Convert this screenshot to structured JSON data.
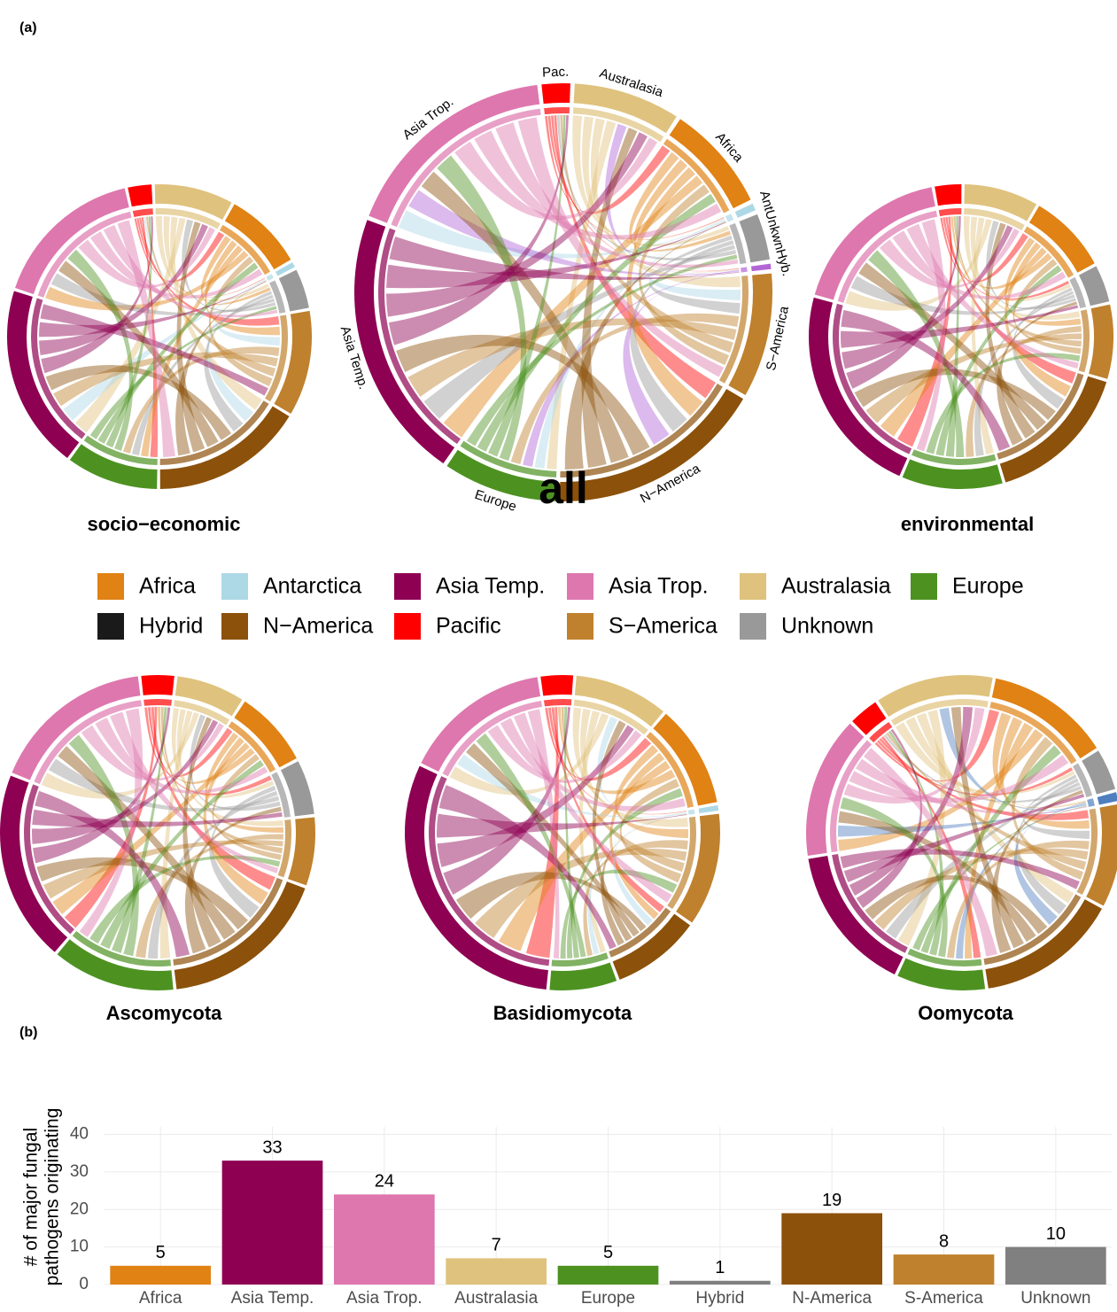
{
  "panel_labels": [
    "(a)",
    "(b)"
  ],
  "legend": {
    "items": [
      {
        "name": "Africa",
        "color": "#E08214"
      },
      {
        "name": "Antarctica",
        "color": "#ADD8E6"
      },
      {
        "name": "Asia Temp.",
        "color": "#8E0152"
      },
      {
        "name": "Asia Trop.",
        "color": "#DE77AE"
      },
      {
        "name": "Australasia",
        "color": "#DFC27D"
      },
      {
        "name": "Europe",
        "color": "#4D9221"
      },
      {
        "name": "Hybrid",
        "color": "#1A1A1A"
      },
      {
        "name": "N−America",
        "color": "#8C510A"
      },
      {
        "name": "Pacific",
        "color": "#FF0000"
      },
      {
        "name": "S−America",
        "color": "#BF812D"
      },
      {
        "name": "Unknown",
        "color": "#999999"
      }
    ]
  },
  "chart_data": [
    {
      "type": "chord",
      "title": "all",
      "labels": [
        "Pac.",
        "Australasia",
        "Africa",
        null,
        "AntUnkwnHyb.",
        null,
        "S−America",
        "N−America",
        "Europe",
        "Asia Temp.",
        "Asia Trop."
      ],
      "sectors": [
        {
          "color": "#FF0000",
          "value": 8
        },
        {
          "color": "#DFC27D",
          "value": 30
        },
        {
          "color": "#E08214",
          "value": 30
        },
        {
          "color": "#ADD8E6",
          "value": 2
        },
        {
          "color": "#999999",
          "value": 13
        },
        {
          "color": "#B266D6",
          "value": 1.5
        },
        {
          "color": "#BF812D",
          "value": 35
        },
        {
          "color": "#8C510A",
          "value": 61
        },
        {
          "color": "#4D9221",
          "value": 32
        },
        {
          "color": "#8E0152",
          "value": 76
        },
        {
          "color": "#DE77AE",
          "value": 62
        }
      ]
    },
    {
      "type": "chord",
      "title": "socio−economic",
      "sectors": [
        {
          "color": "#FF0000",
          "value": 9
        },
        {
          "color": "#DFC27D",
          "value": 30
        },
        {
          "color": "#E08214",
          "value": 30
        },
        {
          "color": "#ADD8E6",
          "value": 2
        },
        {
          "color": "#999999",
          "value": 15
        },
        {
          "color": "#BF812D",
          "value": 40
        },
        {
          "color": "#8C510A",
          "value": 58
        },
        {
          "color": "#4D9221",
          "value": 35
        },
        {
          "color": "#8E0152",
          "value": 70
        },
        {
          "color": "#DE77AE",
          "value": 58
        }
      ]
    },
    {
      "type": "chord",
      "title": "environmental",
      "sectors": [
        {
          "color": "#FF0000",
          "value": 10
        },
        {
          "color": "#DFC27D",
          "value": 28
        },
        {
          "color": "#E08214",
          "value": 30
        },
        {
          "color": "#999999",
          "value": 14
        },
        {
          "color": "#BF812D",
          "value": 28
        },
        {
          "color": "#8C510A",
          "value": 55
        },
        {
          "color": "#4D9221",
          "value": 38
        },
        {
          "color": "#8E0152",
          "value": 80
        },
        {
          "color": "#DE77AE",
          "value": 62
        }
      ]
    },
    {
      "type": "chord",
      "title": "Ascomycota",
      "sectors": [
        {
          "color": "#FF0000",
          "value": 12
        },
        {
          "color": "#DFC27D",
          "value": 25
        },
        {
          "color": "#E08214",
          "value": 28
        },
        {
          "color": "#999999",
          "value": 20
        },
        {
          "color": "#BF812D",
          "value": 25
        },
        {
          "color": "#8C510A",
          "value": 62
        },
        {
          "color": "#4D9221",
          "value": 45
        },
        {
          "color": "#8E0152",
          "value": 70
        },
        {
          "color": "#DE77AE",
          "value": 60
        }
      ]
    },
    {
      "type": "chord",
      "title": "Basidiomycota",
      "sectors": [
        {
          "color": "#FF0000",
          "value": 12
        },
        {
          "color": "#DFC27D",
          "value": 35
        },
        {
          "color": "#E08214",
          "value": 38
        },
        {
          "color": "#ADD8E6",
          "value": 2
        },
        {
          "color": "#BF812D",
          "value": 42
        },
        {
          "color": "#8C510A",
          "value": 33
        },
        {
          "color": "#4D9221",
          "value": 25
        },
        {
          "color": "#8E0152",
          "value": 110
        },
        {
          "color": "#DE77AE",
          "value": 55
        }
      ]
    },
    {
      "type": "chord",
      "title": "Oomycota",
      "sectors": [
        {
          "color": "#FF0000",
          "value": 10
        },
        {
          "color": "#DFC27D",
          "value": 40
        },
        {
          "color": "#E08214",
          "value": 42
        },
        {
          "color": "#999999",
          "value": 14
        },
        {
          "color": "#4F7FBF",
          "value": 3
        },
        {
          "color": "#BF812D",
          "value": 35
        },
        {
          "color": "#8C510A",
          "value": 48
        },
        {
          "color": "#4D9221",
          "value": 30
        },
        {
          "color": "#8E0152",
          "value": 50
        },
        {
          "color": "#DE77AE",
          "value": 48
        }
      ]
    },
    {
      "type": "bar",
      "ylabel": [
        "# of major fungal",
        "pathogens originating"
      ],
      "categories": [
        "Africa",
        "Asia Temp.",
        "Asia Trop.",
        "Australasia",
        "Europe",
        "Hybrid",
        "N-America",
        "S-America",
        "Unknown"
      ],
      "values": [
        5,
        33,
        24,
        7,
        5,
        1,
        19,
        8,
        10
      ],
      "colors": [
        "#E08214",
        "#8E0152",
        "#DE77AE",
        "#DFC27D",
        "#4D9221",
        "#808080",
        "#8C510A",
        "#BF812D",
        "#808080"
      ],
      "ylim": [
        0,
        42
      ],
      "yticks": [
        0,
        10,
        20,
        30,
        40
      ],
      "grid": true
    }
  ]
}
